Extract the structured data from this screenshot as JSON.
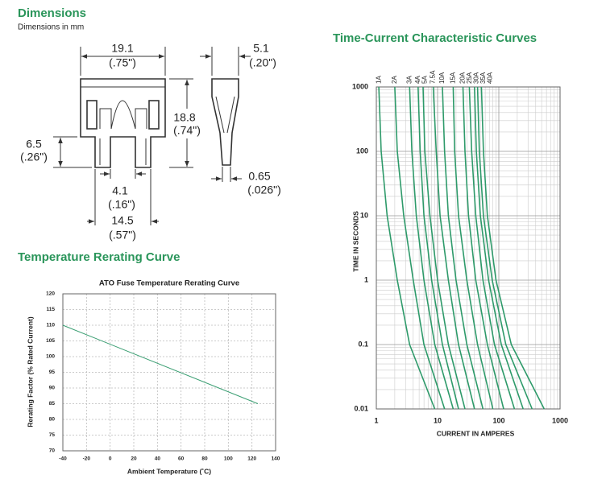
{
  "sections": {
    "dimensions": {
      "title": "Dimensions",
      "subtitle": "Dimensions in mm",
      "width": {
        "mm": 19.1,
        "inch": "(.75\")"
      },
      "thickness": {
        "mm": 5.1,
        "inch": "(.20\")"
      },
      "height": {
        "mm": 18.8,
        "inch": "(.74\")"
      },
      "leg_length": {
        "mm": 6.5,
        "inch": "(.26\")"
      },
      "leg_gap": {
        "mm": 4.1,
        "inch": "(.16\")"
      },
      "leg_span": {
        "mm": 14.5,
        "inch": "(.57\")"
      },
      "blade_thickness": {
        "mm": 0.65,
        "inch": "(.026\")"
      }
    },
    "temperature": {
      "title": "Temperature Rerating Curve"
    }
  },
  "chart_data": [
    {
      "type": "line",
      "title": "ATO Fuse Temperature Rerating Curve",
      "x_label": "Ambient Temperature (˚C)",
      "y_label": "Rerating Factor (% Rated Current)",
      "x": [
        -40,
        125
      ],
      "values": [
        110,
        85
      ],
      "color": "#3a9e72",
      "xlim": [
        -40,
        140
      ],
      "ylim": [
        70,
        120
      ],
      "xticks": [
        -40,
        -20,
        0,
        20,
        40,
        60,
        80,
        100,
        120,
        140
      ],
      "yticks": [
        70,
        75,
        80,
        85,
        90,
        95,
        100,
        105,
        110,
        115,
        120
      ],
      "grid": true
    },
    {
      "type": "line",
      "title": "Time-Current Characteristic Curves",
      "x_label": "CURRENT IN AMPERES",
      "y_label": "TIME IN SECONDS",
      "log_x": true,
      "log_y": true,
      "grid": true,
      "xlim": [
        1,
        1000
      ],
      "ylim": [
        0.01,
        1000
      ],
      "xticks": [
        1,
        10,
        100,
        1000
      ],
      "yticks": [
        0.01,
        0.1,
        1,
        10,
        100,
        1000
      ],
      "series": [
        {
          "name": "1A",
          "color": "#2e9a6a",
          "x": [
            1.1,
            1.2,
            1.5,
            2.2,
            3.5,
            9
          ],
          "values": [
            1000,
            100,
            10,
            1,
            0.1,
            0.01
          ]
        },
        {
          "name": "2A",
          "color": "#2e9a6a",
          "x": [
            2,
            2.2,
            2.8,
            4,
            6,
            13
          ],
          "values": [
            1000,
            100,
            10,
            1,
            0.1,
            0.01
          ]
        },
        {
          "name": "3A",
          "color": "#2e9a6a",
          "x": [
            3.5,
            3.8,
            4.5,
            6,
            9,
            18
          ],
          "values": [
            1000,
            100,
            10,
            1,
            0.1,
            0.01
          ]
        },
        {
          "name": "4A",
          "color": "#2e9a6a",
          "x": [
            4.8,
            5.2,
            6,
            8,
            12,
            22
          ],
          "values": [
            1000,
            100,
            10,
            1,
            0.1,
            0.01
          ]
        },
        {
          "name": "5A",
          "color": "#2e9a6a",
          "x": [
            5.8,
            6.2,
            7.5,
            10,
            15,
            28
          ],
          "values": [
            1000,
            100,
            10,
            1,
            0.1,
            0.01
          ]
        },
        {
          "name": "7.5A",
          "color": "#2e9a6a",
          "x": [
            8.5,
            9.5,
            11,
            15,
            22,
            40
          ],
          "values": [
            1000,
            100,
            10,
            1,
            0.1,
            0.01
          ]
        },
        {
          "name": "10A",
          "color": "#2e9a6a",
          "x": [
            12,
            13,
            15,
            20,
            30,
            55
          ],
          "values": [
            1000,
            100,
            10,
            1,
            0.1,
            0.01
          ]
        },
        {
          "name": "15A",
          "color": "#2e9a6a",
          "x": [
            18,
            19,
            22,
            30,
            45,
            80
          ],
          "values": [
            1000,
            100,
            10,
            1,
            0.1,
            0.01
          ]
        },
        {
          "name": "20A",
          "color": "#2e9a6a",
          "x": [
            26,
            28,
            32,
            42,
            65,
            120
          ],
          "values": [
            1000,
            100,
            10,
            1,
            0.1,
            0.01
          ]
        },
        {
          "name": "25A",
          "color": "#2e9a6a",
          "x": [
            33,
            36,
            42,
            55,
            85,
            180
          ],
          "values": [
            1000,
            100,
            10,
            1,
            0.1,
            0.01
          ]
        },
        {
          "name": "30A",
          "color": "#2e9a6a",
          "x": [
            40,
            43,
            50,
            68,
            110,
            250
          ],
          "values": [
            1000,
            100,
            10,
            1,
            0.1,
            0.01
          ]
        },
        {
          "name": "35A",
          "color": "#2e9a6a",
          "x": [
            45,
            48,
            56,
            78,
            130,
            350
          ],
          "values": [
            1000,
            100,
            10,
            1,
            0.1,
            0.01
          ]
        },
        {
          "name": "40A",
          "color": "#2e9a6a",
          "x": [
            52,
            56,
            65,
            90,
            160,
            550
          ],
          "values": [
            1000,
            100,
            10,
            1,
            0.1,
            0.01
          ]
        }
      ]
    }
  ]
}
